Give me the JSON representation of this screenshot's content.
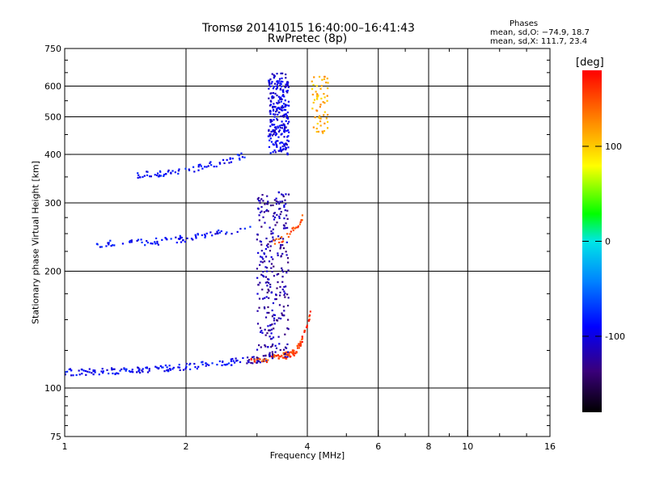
{
  "chart_data": {
    "type": "scatter",
    "title": "Tromsø 20141015 16:40:00–16:41:43",
    "subtitle": "RwPretec (8p)",
    "xlabel": "Frequency [MHz]",
    "ylabel": "Stationary phase Virtual Height [km]",
    "x_scale": "log",
    "y_scale": "log",
    "xlim": [
      1,
      16
    ],
    "ylim": [
      75,
      750
    ],
    "x_ticks": [
      1,
      2,
      4,
      6,
      8,
      10,
      16
    ],
    "y_ticks": [
      75,
      100,
      200,
      300,
      400,
      500,
      600,
      750
    ],
    "grid": true,
    "phase_stats": {
      "title": "Phases",
      "o_mode": "mean, sd,O: −74.9, 18.7",
      "x_mode": "mean, sd,X: 111.7, 23.4"
    },
    "colorbar": {
      "label": "[deg]",
      "ticks": [
        100,
        0,
        -100
      ],
      "range": [
        -180,
        180
      ]
    },
    "traces": [
      {
        "x0": 1.0,
        "x1": 2.8,
        "y0": 110,
        "y1": 118,
        "phase": -90,
        "n": 140
      },
      {
        "x0": 2.8,
        "x1": 3.3,
        "y0": 118,
        "y1": 120,
        "phase": -120,
        "n": 30
      },
      {
        "x0": 2.9,
        "x1": 3.6,
        "y0": 118,
        "y1": 122,
        "phase": 150,
        "n": 40
      },
      {
        "x0": 3.6,
        "x1": 4.1,
        "y0": 122,
        "y1": 160,
        "phase": 160,
        "n": 50
      },
      {
        "x0": 3.0,
        "x1": 3.6,
        "y0": 120,
        "y1": 320,
        "phase": -120,
        "n": 280,
        "vertical": true
      },
      {
        "x0": 1.2,
        "x1": 2.9,
        "y0": 235,
        "y1": 260,
        "phase": -90,
        "n": 80
      },
      {
        "x0": 3.3,
        "x1": 3.9,
        "y0": 240,
        "y1": 275,
        "phase": 150,
        "n": 25
      },
      {
        "x0": 1.5,
        "x1": 2.8,
        "y0": 355,
        "y1": 400,
        "phase": -90,
        "n": 70
      },
      {
        "x0": 3.2,
        "x1": 3.6,
        "y0": 400,
        "y1": 650,
        "phase": -100,
        "n": 260,
        "vertical": true
      },
      {
        "x0": 4.1,
        "x1": 4.5,
        "y0": 450,
        "y1": 640,
        "phase": 110,
        "n": 60,
        "vertical": true
      }
    ]
  }
}
